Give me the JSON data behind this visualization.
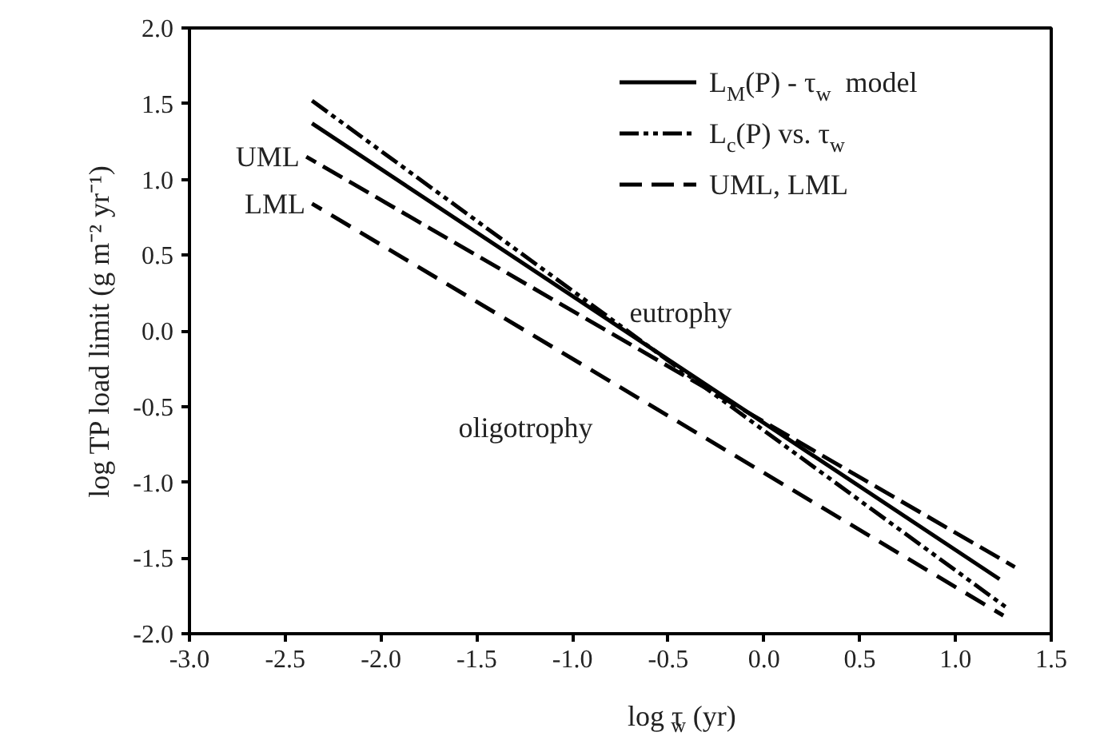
{
  "chart_data": {
    "type": "line",
    "xlabel": "log τ$_{w}$ (yr)",
    "ylabel": "log TP load limit (g m⁻² yr⁻¹)",
    "xlim": [
      -3.0,
      1.5
    ],
    "xticks": [
      {
        "value": -3.0,
        "label": "-3.0"
      },
      {
        "value": -2.5,
        "label": "-2.5"
      },
      {
        "value": -2.0,
        "label": "-2.0"
      },
      {
        "value": -1.5,
        "label": "-1.5"
      },
      {
        "value": -1.0,
        "label": "-1.0"
      },
      {
        "value": -0.5,
        "label": "-0.5"
      },
      {
        "value": 0.0,
        "label": "0.0"
      },
      {
        "value": 0.5,
        "label": "0.5"
      },
      {
        "value": 1.0,
        "label": "1.0"
      },
      {
        "value": 1.5,
        "label": "1.5"
      }
    ],
    "ylim": [
      -2.0,
      2.0
    ],
    "yticks": [
      {
        "value": -2.0,
        "label": "-2.0"
      },
      {
        "value": -1.5,
        "label": "-1.5"
      },
      {
        "value": -1.0,
        "label": "-1.0"
      },
      {
        "value": -0.5,
        "label": "-0.5"
      },
      {
        "value": 0.0,
        "label": "0.0"
      },
      {
        "value": 0.5,
        "label": "0.5"
      },
      {
        "value": 1.0,
        "label": "1.0"
      },
      {
        "value": 1.5,
        "label": "1.5"
      },
      {
        "value": 2.0,
        "label": "2.0"
      }
    ],
    "legend": "top right",
    "grid": false,
    "series": [
      {
        "name": "L$_{M}$(P) - τ$_{w}$  model",
        "color": "#000000",
        "line_style": "solid",
        "x": [
          -2.36,
          1.23
        ],
        "values": [
          1.37,
          -1.64
        ]
      },
      {
        "name": "L$_{c}$(P) vs. τ$_{w}$",
        "color": "#000000",
        "line_style": "dashdotdot",
        "x": [
          -2.36,
          1.28
        ],
        "values": [
          1.52,
          -1.84
        ]
      },
      {
        "name": "UML, LML",
        "color": "#000000",
        "line_style": "dashed",
        "x": [
          -2.39,
          1.31
        ],
        "values": [
          1.15,
          -1.56
        ]
      },
      {
        "color": "#000000",
        "line_style": "dashed",
        "x": [
          -2.36,
          1.25
        ],
        "values": [
          0.84,
          -1.88
        ]
      }
    ],
    "annotations": [
      {
        "text": "UML",
        "x": -2.4,
        "y": 1.15
      },
      {
        "text": "LML",
        "x": -2.37,
        "y": 0.84
      },
      "eutrophy",
      "oligotrophy"
    ]
  }
}
